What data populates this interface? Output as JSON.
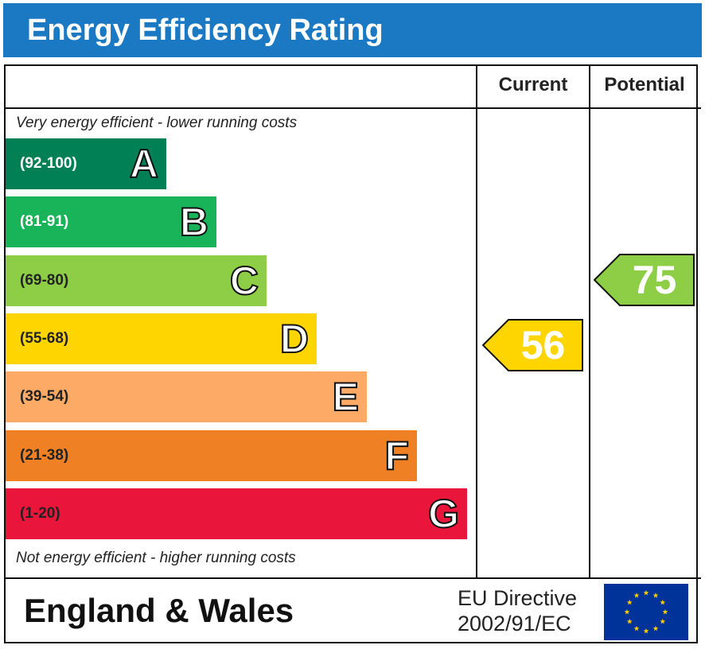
{
  "header": {
    "title": "Energy Efficiency Rating"
  },
  "columns": {
    "current": "Current",
    "potential": "Potential"
  },
  "captions": {
    "top": "Very energy efficient - lower running costs",
    "bottom": "Not energy efficient - higher running costs"
  },
  "footer": {
    "country": "England & Wales",
    "directive_line1": "EU Directive",
    "directive_line2": "2002/91/EC",
    "flag_icon": "eu-flag-icon"
  },
  "chart_data": {
    "type": "bar",
    "title": "Energy Efficiency Rating",
    "categories": [
      "A",
      "B",
      "C",
      "D",
      "E",
      "F",
      "G"
    ],
    "bands": [
      {
        "letter": "A",
        "range": "(92-100)",
        "min": 92,
        "max": 100,
        "color": "#008054",
        "range_color": "#ffffff"
      },
      {
        "letter": "B",
        "range": "(81-91)",
        "min": 81,
        "max": 91,
        "color": "#19b459",
        "range_color": "#ffffff"
      },
      {
        "letter": "C",
        "range": "(69-80)",
        "min": 69,
        "max": 80,
        "color": "#8dce46",
        "range_color": "#222222"
      },
      {
        "letter": "D",
        "range": "(55-68)",
        "min": 55,
        "max": 68,
        "color": "#ffd500",
        "range_color": "#222222"
      },
      {
        "letter": "E",
        "range": "(39-54)",
        "min": 39,
        "max": 54,
        "color": "#fcaa65",
        "range_color": "#222222"
      },
      {
        "letter": "F",
        "range": "(21-38)",
        "min": 21,
        "max": 38,
        "color": "#ef8023",
        "range_color": "#222222"
      },
      {
        "letter": "G",
        "range": "(1-20)",
        "min": 1,
        "max": 20,
        "color": "#e9153b",
        "range_color": "#222222"
      }
    ],
    "series": [
      {
        "name": "Current",
        "value": 56,
        "band": "D",
        "color": "#ffd500"
      },
      {
        "name": "Potential",
        "value": 75,
        "band": "C",
        "color": "#8dce46"
      }
    ]
  }
}
